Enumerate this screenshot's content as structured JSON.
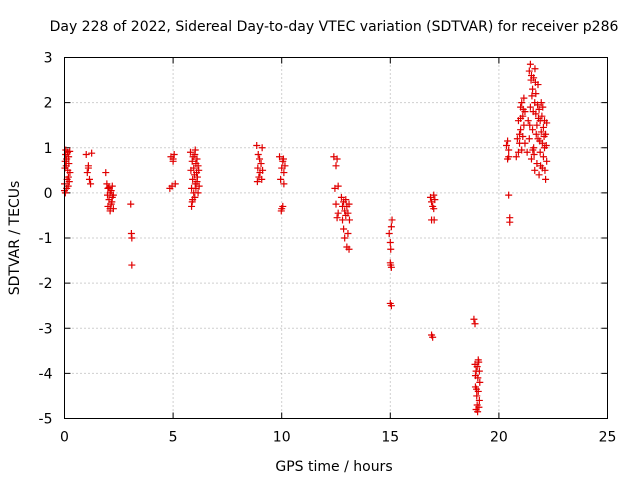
{
  "chart_data": {
    "type": "scatter",
    "title": "Day 228 of 2022, Sidereal Day-to-day VTEC variation (SDTVAR) for receiver p286",
    "xlabel": "GPS time / hours",
    "ylabel": "SDTVAR / TECUs",
    "xlim": [
      0,
      25
    ],
    "ylim": [
      -5,
      3
    ],
    "xticks": [
      0,
      5,
      10,
      15,
      20,
      25
    ],
    "yticks": [
      -5,
      -4,
      -3,
      -2,
      -1,
      0,
      1,
      2,
      3
    ],
    "grid": true,
    "marker": "+",
    "color": "#e00000",
    "series": [
      {
        "name": "SDTVAR",
        "points": [
          [
            0.0,
            0.05
          ],
          [
            0.0,
            0.2
          ],
          [
            0.02,
            0.55
          ],
          [
            0.03,
            0.7
          ],
          [
            0.05,
            0.85
          ],
          [
            0.06,
            0.95
          ],
          [
            0.08,
            0.6
          ],
          [
            0.1,
            0.75
          ],
          [
            0.12,
            0.3
          ],
          [
            0.14,
            0.9
          ],
          [
            0.15,
            0.5
          ],
          [
            0.17,
            0.15
          ],
          [
            0.19,
            0.8
          ],
          [
            0.2,
            0.65
          ],
          [
            0.22,
            0.25
          ],
          [
            0.24,
            0.92
          ],
          [
            0.25,
            0.45
          ],
          [
            0.04,
            0.0
          ],
          [
            0.1,
            0.1
          ],
          [
            0.18,
            0.35
          ],
          [
            1.0,
            0.85
          ],
          [
            1.05,
            0.45
          ],
          [
            1.1,
            0.6
          ],
          [
            1.15,
            0.3
          ],
          [
            1.2,
            0.2
          ],
          [
            1.25,
            0.88
          ],
          [
            1.1,
            0.55
          ],
          [
            1.9,
            0.45
          ],
          [
            1.95,
            0.2
          ],
          [
            2.0,
            0.1
          ],
          [
            2.0,
            -0.3
          ],
          [
            2.05,
            -0.15
          ],
          [
            2.1,
            0.0
          ],
          [
            2.1,
            -0.4
          ],
          [
            2.15,
            0.05
          ],
          [
            2.15,
            -0.25
          ],
          [
            2.2,
            -0.1
          ],
          [
            2.2,
            0.15
          ],
          [
            2.25,
            -0.35
          ],
          [
            2.25,
            -0.05
          ],
          [
            2.1,
            -0.35
          ],
          [
            2.05,
            0.12
          ],
          [
            2.18,
            -0.2
          ],
          [
            1.98,
            -0.05
          ],
          [
            3.05,
            -0.25
          ],
          [
            3.08,
            -0.9
          ],
          [
            3.1,
            -1.0
          ],
          [
            3.1,
            -1.6
          ],
          [
            4.85,
            0.1
          ],
          [
            4.9,
            0.8
          ],
          [
            4.95,
            0.15
          ],
          [
            5.0,
            0.7
          ],
          [
            5.05,
            0.85
          ],
          [
            5.1,
            0.2
          ],
          [
            5.0,
            0.75
          ],
          [
            5.8,
            0.9
          ],
          [
            5.82,
            0.5
          ],
          [
            5.85,
            0.1
          ],
          [
            5.85,
            -0.3
          ],
          [
            5.88,
            0.7
          ],
          [
            5.9,
            0.3
          ],
          [
            5.9,
            -0.15
          ],
          [
            5.92,
            0.8
          ],
          [
            5.95,
            0.55
          ],
          [
            5.95,
            0.0
          ],
          [
            5.98,
            0.4
          ],
          [
            6.0,
            0.85
          ],
          [
            6.0,
            -0.1
          ],
          [
            6.02,
            0.2
          ],
          [
            6.05,
            0.65
          ],
          [
            6.05,
            0.1
          ],
          [
            6.08,
            0.45
          ],
          [
            6.1,
            0.75
          ],
          [
            6.1,
            0.25
          ],
          [
            6.12,
            0.35
          ],
          [
            6.15,
            0.6
          ],
          [
            6.15,
            0.0
          ],
          [
            6.18,
            0.5
          ],
          [
            6.2,
            0.15
          ],
          [
            5.88,
            -0.2
          ],
          [
            6.02,
            0.95
          ],
          [
            8.85,
            1.05
          ],
          [
            8.9,
            0.55
          ],
          [
            8.92,
            0.85
          ],
          [
            8.95,
            0.35
          ],
          [
            8.98,
            0.75
          ],
          [
            9.0,
            0.45
          ],
          [
            9.05,
            0.65
          ],
          [
            9.08,
            0.3
          ],
          [
            9.1,
            1.0
          ],
          [
            9.12,
            0.5
          ],
          [
            8.88,
            0.25
          ],
          [
            9.9,
            0.8
          ],
          [
            9.95,
            0.3
          ],
          [
            10.0,
            0.55
          ],
          [
            10.0,
            -0.35
          ],
          [
            10.05,
            0.7
          ],
          [
            10.05,
            -0.3
          ],
          [
            10.1,
            0.2
          ],
          [
            10.1,
            0.45
          ],
          [
            10.15,
            0.6
          ],
          [
            9.98,
            -0.4
          ],
          [
            10.08,
            0.75
          ],
          [
            12.4,
            0.8
          ],
          [
            12.45,
            0.1
          ],
          [
            12.5,
            0.6
          ],
          [
            12.5,
            -0.25
          ],
          [
            12.55,
            0.75
          ],
          [
            12.55,
            -0.55
          ],
          [
            12.6,
            0.15
          ],
          [
            12.6,
            -0.45
          ],
          [
            12.75,
            -0.1
          ],
          [
            12.8,
            -0.3
          ],
          [
            12.8,
            -0.6
          ],
          [
            12.85,
            -0.8
          ],
          [
            12.85,
            -0.2
          ],
          [
            12.9,
            -0.4
          ],
          [
            12.9,
            -1.0
          ],
          [
            12.95,
            -0.15
          ],
          [
            12.95,
            -0.5
          ],
          [
            13.0,
            -1.2
          ],
          [
            13.0,
            -0.3
          ],
          [
            13.05,
            -0.9
          ],
          [
            13.05,
            -0.45
          ],
          [
            13.1,
            -1.25
          ],
          [
            13.1,
            -0.25
          ],
          [
            13.12,
            -0.6
          ],
          [
            14.95,
            -0.9
          ],
          [
            15.0,
            -1.1
          ],
          [
            15.0,
            -1.55
          ],
          [
            15.02,
            -1.25
          ],
          [
            15.05,
            -1.65
          ],
          [
            15.05,
            -0.75
          ],
          [
            15.08,
            -0.6
          ],
          [
            15.0,
            -2.45
          ],
          [
            15.05,
            -2.5
          ],
          [
            15.02,
            -1.6
          ],
          [
            16.85,
            -0.1
          ],
          [
            16.9,
            -0.2
          ],
          [
            16.9,
            -0.6
          ],
          [
            16.95,
            -0.3
          ],
          [
            17.0,
            -0.05
          ],
          [
            17.0,
            -0.35
          ],
          [
            17.02,
            -0.6
          ],
          [
            17.05,
            -0.15
          ],
          [
            16.9,
            -3.15
          ],
          [
            16.95,
            -3.2
          ],
          [
            18.85,
            -2.8
          ],
          [
            18.9,
            -2.9
          ],
          [
            18.9,
            -3.8
          ],
          [
            18.92,
            -4.3
          ],
          [
            18.95,
            -4.8
          ],
          [
            18.95,
            -3.95
          ],
          [
            18.98,
            -4.5
          ],
          [
            19.0,
            -4.7
          ],
          [
            19.0,
            -3.85
          ],
          [
            19.02,
            -4.85
          ],
          [
            19.05,
            -3.7
          ],
          [
            19.05,
            -4.4
          ],
          [
            19.08,
            -4.75
          ],
          [
            19.1,
            -3.95
          ],
          [
            19.1,
            -4.6
          ],
          [
            19.12,
            -4.2
          ],
          [
            18.92,
            -4.05
          ],
          [
            19.03,
            -4.1
          ],
          [
            18.97,
            -4.35
          ],
          [
            19.07,
            -3.75
          ],
          [
            20.35,
            1.05
          ],
          [
            20.4,
            1.15
          ],
          [
            20.4,
            0.75
          ],
          [
            20.45,
            -0.05
          ],
          [
            20.45,
            0.95
          ],
          [
            20.5,
            -0.55
          ],
          [
            20.5,
            -0.65
          ],
          [
            20.45,
            0.8
          ],
          [
            20.8,
            0.8
          ],
          [
            20.85,
            1.2
          ],
          [
            20.9,
            1.6
          ],
          [
            20.95,
            1.1
          ],
          [
            21.0,
            1.9
          ],
          [
            21.0,
            1.4
          ],
          [
            21.05,
            2.0
          ],
          [
            21.05,
            0.95
          ],
          [
            21.1,
            1.7
          ],
          [
            21.1,
            1.25
          ],
          [
            21.15,
            2.1
          ],
          [
            21.15,
            1.5
          ],
          [
            20.9,
            0.9
          ],
          [
            21.0,
            1.65
          ],
          [
            21.12,
            1.85
          ],
          [
            20.95,
            1.3
          ],
          [
            21.2,
            1.8
          ],
          [
            21.2,
            1.1
          ],
          [
            21.3,
            0.9
          ],
          [
            21.35,
            1.6
          ],
          [
            21.4,
            2.7
          ],
          [
            21.4,
            1.2
          ],
          [
            21.45,
            2.85
          ],
          [
            21.45,
            1.9
          ],
          [
            21.5,
            2.6
          ],
          [
            21.5,
            0.75
          ],
          [
            21.55,
            2.3
          ],
          [
            21.55,
            1.4
          ],
          [
            21.6,
            2.55
          ],
          [
            21.6,
            1.0
          ],
          [
            21.65,
            2.0
          ],
          [
            21.65,
            0.5
          ],
          [
            21.7,
            2.2
          ],
          [
            21.7,
            1.75
          ],
          [
            21.75,
            1.5
          ],
          [
            21.75,
            0.65
          ],
          [
            21.8,
            2.4
          ],
          [
            21.8,
            1.2
          ],
          [
            21.85,
            1.85
          ],
          [
            21.85,
            0.4
          ],
          [
            21.9,
            1.6
          ],
          [
            21.9,
            0.9
          ],
          [
            21.95,
            2.0
          ],
          [
            21.95,
            1.35
          ],
          [
            22.0,
            1.1
          ],
          [
            22.0,
            0.55
          ],
          [
            22.05,
            1.45
          ],
          [
            22.05,
            0.8
          ],
          [
            22.1,
            1.6
          ],
          [
            22.1,
            1.0
          ],
          [
            22.15,
            1.3
          ],
          [
            22.15,
            0.3
          ],
          [
            22.2,
            1.55
          ],
          [
            22.2,
            0.7
          ],
          [
            21.42,
            1.5
          ],
          [
            21.58,
            1.8
          ],
          [
            21.68,
            2.45
          ],
          [
            21.78,
            1.95
          ],
          [
            21.88,
            1.15
          ],
          [
            21.98,
            1.7
          ],
          [
            22.08,
            1.25
          ],
          [
            22.18,
            1.05
          ],
          [
            21.52,
            2.15
          ],
          [
            21.62,
            0.85
          ],
          [
            21.72,
            1.3
          ],
          [
            21.82,
            1.65
          ],
          [
            21.92,
            0.6
          ],
          [
            22.02,
            1.9
          ],
          [
            22.12,
            0.5
          ],
          [
            21.48,
            2.5
          ],
          [
            21.66,
            2.75
          ],
          [
            21.56,
            0.95
          ]
        ]
      }
    ]
  }
}
